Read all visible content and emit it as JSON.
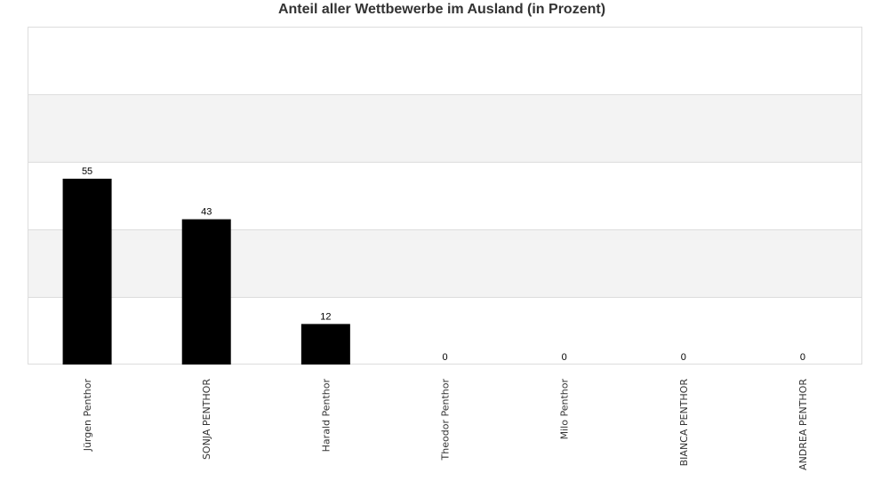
{
  "chart_data": {
    "type": "bar",
    "title": "Anteil aller Wettbewerbe im Ausland (in Prozent)",
    "xlabel": "",
    "ylabel": "",
    "categories": [
      "Jürgen Penthor",
      "SONJA PENTHOR",
      "Harald Penthor",
      "Theodor Penthor",
      "Milo Penthor",
      "BIANCA PENTHOR",
      "ANDREA PENTHOR"
    ],
    "values": [
      55,
      43,
      12,
      0,
      0,
      0,
      0
    ],
    "value_labels": [
      "55",
      "43",
      "12",
      "0",
      "0",
      "0",
      "0"
    ],
    "ylim": [
      0,
      100
    ],
    "y_gridlines": [
      20,
      40,
      60,
      80
    ],
    "grid": true,
    "bar_color": "#000000",
    "band_color": "#f3f3f3",
    "legend": "none"
  }
}
